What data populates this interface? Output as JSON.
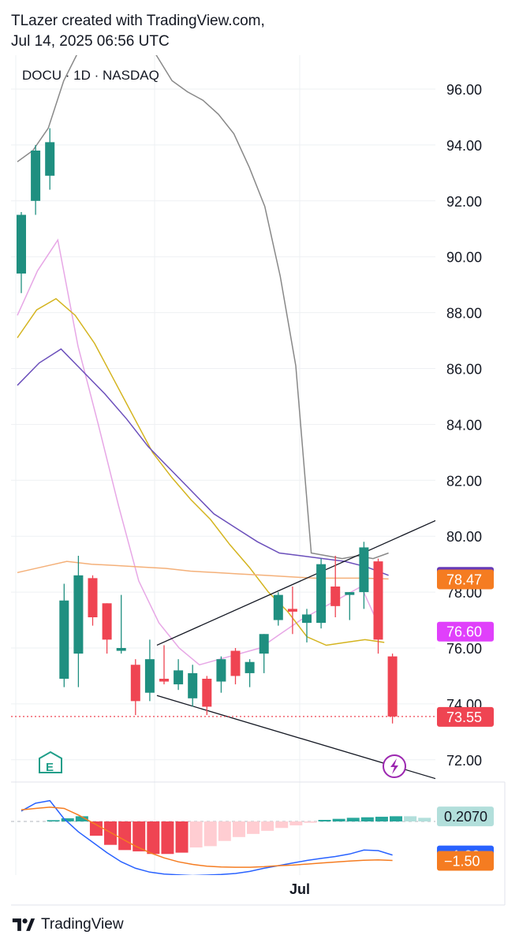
{
  "header": {
    "line1": "TLazer created with TradingView.com,",
    "line2": "Jul 14, 2025 06:56 UTC"
  },
  "footer": {
    "brand": "TradingView",
    "logo_icon": "tradingview-logo-icon"
  },
  "colors": {
    "up": "#26a69a",
    "up_dark": "#1f8f80",
    "down": "#ef4452",
    "grid": "#eef0f3",
    "text": "#131722"
  },
  "chart_data": [
    {
      "type": "candlestick",
      "symbol_label": "DOCU · 1D · NASDAQ",
      "y_axis": {
        "ticks": [
          96.0,
          94.0,
          92.0,
          90.0,
          88.0,
          86.0,
          84.0,
          82.0,
          80.0,
          78.0,
          76.0,
          74.0,
          72.0
        ],
        "tick_labels": [
          "96.00",
          "94.00",
          "92.00",
          "90.00",
          "88.00",
          "86.00",
          "84.00",
          "82.00",
          "80.00",
          "78.00",
          "76.00",
          "74.00",
          "72.00"
        ],
        "range": [
          70.9,
          99.3
        ]
      },
      "x_axis": {
        "labels": [
          {
            "text": "Jul",
            "bar_index": 19.5
          }
        ]
      },
      "candles": [
        {
          "o": 89.4,
          "h": 91.6,
          "l": 88.7,
          "c": 91.5
        },
        {
          "o": 92.0,
          "h": 94.0,
          "l": 91.5,
          "c": 93.8
        },
        {
          "o": 92.9,
          "h": 94.6,
          "l": 92.4,
          "c": 94.1
        },
        {
          "o": 74.9,
          "h": 78.3,
          "l": 74.6,
          "c": 77.7
        },
        {
          "o": 75.8,
          "h": 79.3,
          "l": 74.6,
          "c": 78.6
        },
        {
          "o": 78.5,
          "h": 78.6,
          "l": 76.8,
          "c": 77.1
        },
        {
          "o": 77.6,
          "h": 77.6,
          "l": 75.8,
          "c": 76.3
        },
        {
          "o": 75.9,
          "h": 77.9,
          "l": 75.8,
          "c": 76.0
        },
        {
          "o": 75.4,
          "h": 75.6,
          "l": 73.6,
          "c": 74.1
        },
        {
          "o": 74.4,
          "h": 76.3,
          "l": 74.1,
          "c": 75.6
        },
        {
          "o": 74.9,
          "h": 76.1,
          "l": 74.7,
          "c": 74.8
        },
        {
          "o": 74.7,
          "h": 75.6,
          "l": 74.5,
          "c": 75.2
        },
        {
          "o": 74.2,
          "h": 75.4,
          "l": 73.9,
          "c": 75.1
        },
        {
          "o": 74.9,
          "h": 75.0,
          "l": 73.6,
          "c": 73.9
        },
        {
          "o": 74.8,
          "h": 75.7,
          "l": 74.4,
          "c": 75.6
        },
        {
          "o": 75.9,
          "h": 76.0,
          "l": 74.7,
          "c": 75.0
        },
        {
          "o": 75.1,
          "h": 75.6,
          "l": 74.6,
          "c": 75.5
        },
        {
          "o": 75.8,
          "h": 76.5,
          "l": 75.1,
          "c": 76.5
        },
        {
          "o": 77.0,
          "h": 78.0,
          "l": 76.8,
          "c": 77.9
        },
        {
          "o": 77.4,
          "h": 78.2,
          "l": 76.5,
          "c": 77.3
        },
        {
          "o": 76.9,
          "h": 77.4,
          "l": 76.2,
          "c": 77.2
        },
        {
          "o": 76.9,
          "h": 79.2,
          "l": 76.7,
          "c": 79.0
        },
        {
          "o": 78.2,
          "h": 79.3,
          "l": 77.1,
          "c": 77.5
        },
        {
          "o": 77.9,
          "h": 78.0,
          "l": 77.0,
          "c": 78.0
        },
        {
          "o": 78.0,
          "h": 79.8,
          "l": 77.4,
          "c": 79.6
        },
        {
          "o": 79.1,
          "h": 79.2,
          "l": 75.8,
          "c": 76.3
        },
        {
          "o": 75.7,
          "h": 75.8,
          "l": 73.3,
          "c": 73.55
        }
      ],
      "overlays": [
        {
          "color": "#888888",
          "values": [
            93.4,
            93.8,
            94.6,
            96.3,
            97.4,
            98.0,
            98.7,
            98.6,
            98.0,
            97.2,
            96.3,
            95.9,
            95.6,
            95.1,
            94.4,
            93.2,
            91.8,
            89.3,
            86.1,
            79.4,
            79.3,
            79.2,
            79.3,
            79.2,
            79.4
          ]
        },
        {
          "color": "#e7a7e6",
          "values": [
            87.9,
            89.5,
            90.6,
            86.8,
            84.0,
            81.1,
            78.4,
            76.9,
            76.0,
            75.4,
            75.6,
            75.8,
            76.0,
            76.5,
            77.0,
            77.4,
            77.8,
            78.2,
            76.6
          ]
        },
        {
          "color": "#d4b41f",
          "values": [
            87.1,
            88.1,
            88.5,
            87.9,
            86.9,
            85.6,
            84.3,
            83.0,
            82.1,
            81.3,
            80.6,
            79.7,
            78.9,
            78.0,
            77.3,
            76.4,
            76.1,
            76.2,
            76.3,
            76.2
          ]
        },
        {
          "color": "#6b4fbb",
          "values": [
            85.4,
            86.2,
            86.7,
            85.9,
            85.1,
            84.2,
            83.2,
            82.4,
            81.6,
            80.8,
            80.3,
            79.8,
            79.4,
            79.3,
            79.2,
            79.1,
            78.9,
            78.6
          ]
        },
        {
          "color": "#f4b079",
          "values": [
            78.7,
            78.9,
            79.1,
            79.0,
            78.95,
            78.9,
            78.85,
            78.75,
            78.7,
            78.65,
            78.6,
            78.55,
            78.5,
            78.5,
            78.5,
            78.47
          ]
        }
      ],
      "trend_lines": [
        {
          "from": {
            "bar": 9.5,
            "y": 76.1
          },
          "to": {
            "bar": 30.5,
            "y": 80.9
          }
        },
        {
          "from": {
            "bar": 9.5,
            "y": 74.3
          },
          "to": {
            "bar": 30.5,
            "y": 71.1
          }
        }
      ],
      "price_line": {
        "value": 73.55,
        "color": "#ef4452"
      },
      "price_labels": [
        {
          "text": "78.56",
          "value": 78.56,
          "color": "#673ab7"
        },
        {
          "text": "78.47",
          "value": 78.47,
          "color": "#f57c21"
        },
        {
          "text": "76.60",
          "value": 76.6,
          "color": "#e040fb"
        },
        {
          "text": "73.55",
          "value": 73.55,
          "color": "#ef4452"
        }
      ],
      "markers": [
        {
          "icon": "earnings-e-icon",
          "text": "E",
          "color": "#1f9e89"
        },
        {
          "icon": "lightning-icon",
          "color": "#9c27b0"
        }
      ]
    },
    {
      "type": "macd",
      "y_range": [
        -2.2,
        1.0
      ],
      "histogram": [
        0.05,
        0.12,
        0.2,
        -0.55,
        -0.9,
        -1.1,
        -1.15,
        -1.25,
        -1.25,
        -1.2,
        -1.0,
        -0.95,
        -0.75,
        -0.6,
        -0.48,
        -0.36,
        -0.25,
        -0.15,
        -0.05,
        0.06,
        0.1,
        0.14,
        0.16,
        0.18,
        0.2,
        0.2,
        0.14
      ],
      "macd_line": [
        0.4,
        0.7,
        0.8,
        0.1,
        -0.4,
        -0.8,
        -1.2,
        -1.55,
        -1.8,
        -1.95,
        -2.02,
        -2.05,
        -2.08,
        -2.06,
        -2.04,
        -2.0,
        -1.92,
        -1.8,
        -1.7,
        -1.6,
        -1.5,
        -1.42,
        -1.35,
        -1.25,
        -1.1,
        -1.12,
        -1.29
      ],
      "signal_line": [
        0.45,
        0.5,
        0.55,
        0.5,
        0.25,
        -0.05,
        -0.35,
        -0.65,
        -0.95,
        -1.2,
        -1.4,
        -1.55,
        -1.65,
        -1.72,
        -1.75,
        -1.76,
        -1.76,
        -1.74,
        -1.7,
        -1.68,
        -1.64,
        -1.6,
        -1.56,
        -1.52,
        -1.49,
        -1.48,
        -1.5
      ],
      "labels": [
        {
          "text": "0.2070",
          "value": 0.207,
          "bg": "#b2dfdb",
          "fg": "#131722"
        },
        {
          "text": "−1.29",
          "value": -1.29,
          "bg": "#2962ff",
          "fg": "#ffffff"
        },
        {
          "text": "−1.50",
          "value": -1.5,
          "bg": "#f57c21",
          "fg": "#ffffff"
        }
      ],
      "macd_color": "#2962ff",
      "signal_color": "#f57c21"
    }
  ]
}
